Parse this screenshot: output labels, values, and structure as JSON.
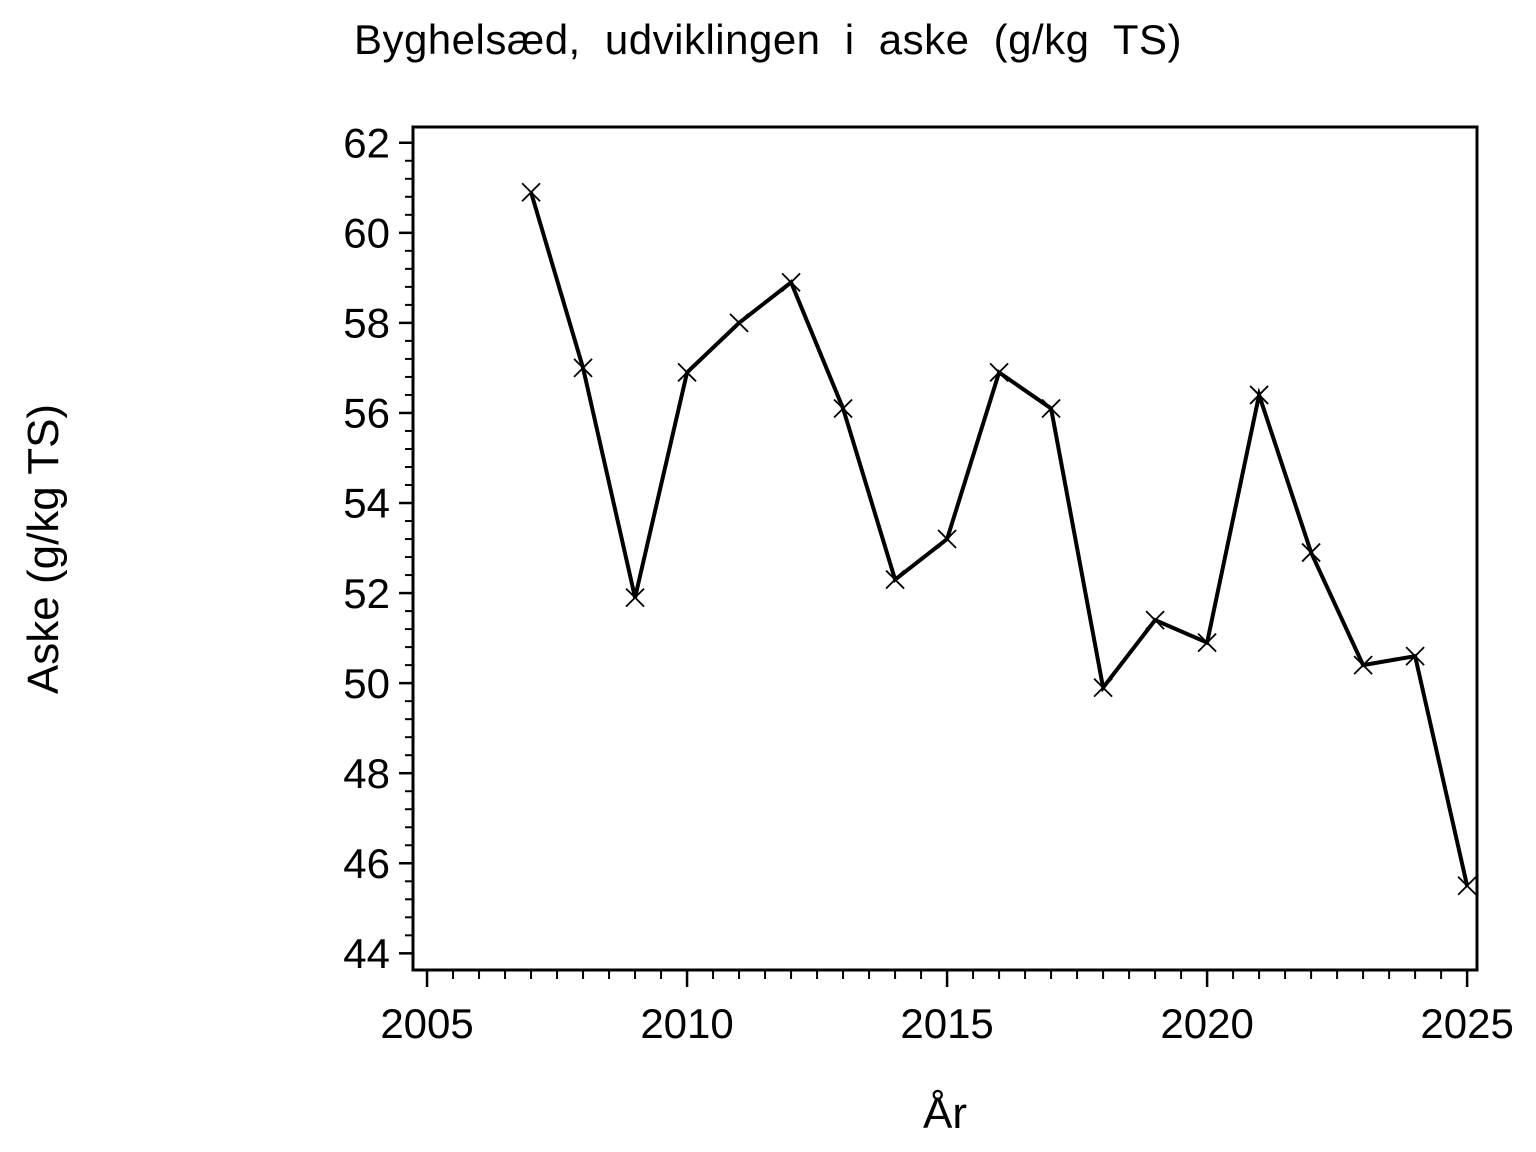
{
  "page": {
    "background_color": "#ffffff",
    "foreground_color": "#000000"
  },
  "chart_data": {
    "type": "line",
    "title": "Byghelsæd, udviklingen i aske (g/kg TS)",
    "xlabel": "År",
    "ylabel": "Aske (g/kg TS)",
    "series": [
      {
        "name": "Aske",
        "marker": "x",
        "color": "#000000",
        "x": [
          2007,
          2008,
          2009,
          2010,
          2011,
          2012,
          2013,
          2014,
          2015,
          2016,
          2017,
          2018,
          2019,
          2020,
          2021,
          2022,
          2023,
          2024,
          2025
        ],
        "y": [
          60.9,
          57.0,
          51.9,
          56.9,
          58.0,
          58.9,
          56.1,
          52.3,
          53.2,
          56.9,
          56.1,
          49.9,
          51.4,
          50.9,
          56.4,
          52.9,
          50.4,
          50.6,
          45.5
        ]
      }
    ],
    "x_ticks": [
      2005,
      2010,
      2015,
      2020,
      2025
    ],
    "y_ticks": [
      44,
      46,
      48,
      50,
      52,
      54,
      56,
      58,
      60,
      62
    ],
    "x_minor_step": 0.5,
    "y_minor_step": 0.4,
    "xlim": [
      2004.73,
      2025.19
    ],
    "ylim": [
      43.63,
      62.35
    ],
    "grid": false,
    "legend": false
  }
}
